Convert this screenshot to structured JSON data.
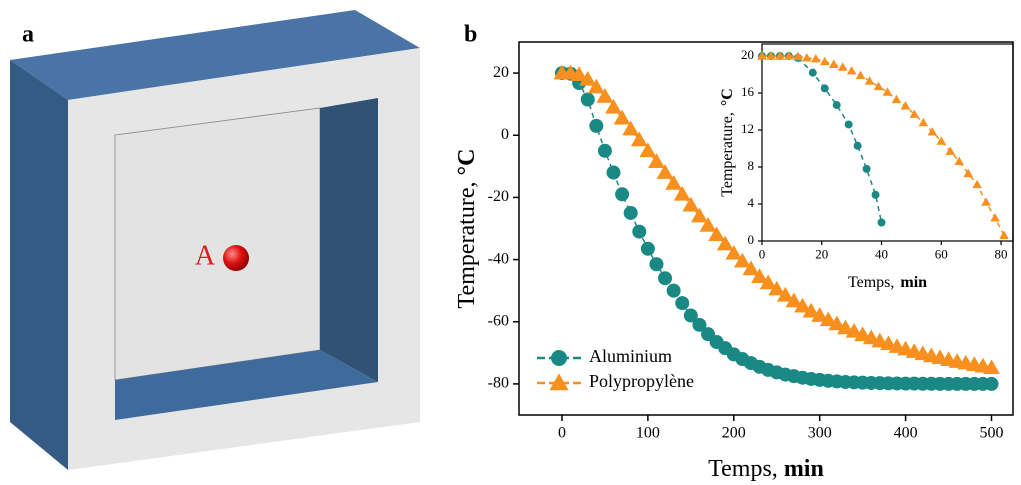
{
  "panel_a": {
    "label": "a",
    "point_label": "A"
  },
  "chart_data": [
    {
      "type": "line",
      "panel_label": "b",
      "xlabel": {
        "text": "Temps,",
        "unit": "min"
      },
      "ylabel": {
        "text": "Temperature,",
        "unit": "°C"
      },
      "xlim": [
        -50,
        525
      ],
      "ylim": [
        -90,
        30
      ],
      "xticks": [
        0,
        100,
        200,
        300,
        400,
        500
      ],
      "yticks": [
        20,
        0,
        -20,
        -40,
        -60,
        -80
      ],
      "legend": "lower left",
      "x": [
        0,
        10,
        20,
        30,
        40,
        50,
        60,
        70,
        80,
        90,
        100,
        110,
        120,
        130,
        140,
        150,
        160,
        170,
        180,
        190,
        200,
        210,
        220,
        230,
        240,
        250,
        260,
        270,
        280,
        290,
        300,
        310,
        320,
        330,
        340,
        350,
        360,
        370,
        380,
        390,
        400,
        410,
        420,
        430,
        440,
        450,
        460,
        470,
        480,
        490,
        500
      ],
      "series": [
        {
          "name": "Aluminium",
          "color": "#1a8985",
          "marker": "circle",
          "linestyle": "dashed",
          "values": [
            20,
            19.8,
            16.8,
            11.5,
            3,
            -5,
            -12,
            -19,
            -25,
            -31,
            -36.5,
            -41.5,
            -46,
            -50,
            -54,
            -58,
            -61,
            -64,
            -66.5,
            -68.5,
            -70.5,
            -72,
            -73.3,
            -74.5,
            -75.5,
            -76.3,
            -77,
            -77.5,
            -78,
            -78.4,
            -78.7,
            -79,
            -79.2,
            -79.4,
            -79.5,
            -79.6,
            -79.7,
            -79.75,
            -79.8,
            -79.85,
            -79.9,
            -79.9,
            -79.95,
            -79.95,
            -80,
            -80,
            -80,
            -80,
            -80,
            -80,
            -80
          ]
        },
        {
          "name": "Polypropylène",
          "color": "#f7901e",
          "marker": "triangle",
          "linestyle": "dashed",
          "values": [
            20,
            20,
            19.5,
            18,
            15.5,
            12.5,
            9,
            5.5,
            2,
            -1.5,
            -5,
            -8.5,
            -12,
            -15.5,
            -19,
            -22.5,
            -26,
            -29,
            -32,
            -35,
            -38,
            -40.5,
            -43,
            -45.5,
            -47.5,
            -49.5,
            -51.5,
            -53.3,
            -55,
            -56.6,
            -58,
            -59.4,
            -60.7,
            -62,
            -63.1,
            -64.2,
            -65.2,
            -66.2,
            -67.1,
            -68,
            -68.8,
            -69.6,
            -70.3,
            -71,
            -71.6,
            -72.2,
            -72.8,
            -73.3,
            -73.8,
            -74.3,
            -74.8
          ]
        }
      ]
    },
    {
      "type": "line",
      "xlabel": {
        "text": "Temps,",
        "unit": "min"
      },
      "ylabel": {
        "text": "Temperature,",
        "unit": "°C"
      },
      "xlim": [
        0,
        84
      ],
      "ylim": [
        0,
        21.3
      ],
      "xticks": [
        0,
        20,
        40,
        60,
        80
      ],
      "yticks": [
        0,
        4,
        8,
        12,
        16,
        20
      ],
      "series": [
        {
          "color": "#1a8985",
          "marker": "circle",
          "linestyle": "dashed",
          "x": [
            0,
            3,
            6,
            9,
            12,
            17,
            21,
            25,
            29,
            32,
            35,
            38,
            40
          ],
          "values": [
            20,
            20,
            20,
            20,
            19.8,
            18.2,
            16.5,
            14.7,
            12.6,
            10.3,
            7.8,
            5,
            2
          ]
        },
        {
          "color": "#f7901e",
          "marker": "triangle",
          "linestyle": "dashed",
          "x": [
            0,
            3,
            6,
            9,
            12,
            15,
            18,
            21,
            24,
            27,
            30,
            33,
            36,
            39,
            42,
            45,
            48,
            51,
            54,
            57,
            60,
            63,
            66,
            69,
            72,
            75,
            78,
            81
          ],
          "values": [
            20,
            20,
            20,
            20,
            19.95,
            19.8,
            19.7,
            19.4,
            19.1,
            18.8,
            18.4,
            17.9,
            17.3,
            16.7,
            16.1,
            15.3,
            14.6,
            13.7,
            12.8,
            11.8,
            10.8,
            9.7,
            8.6,
            7.3,
            6.1,
            4.2,
            2.5,
            0.6
          ]
        }
      ]
    }
  ]
}
